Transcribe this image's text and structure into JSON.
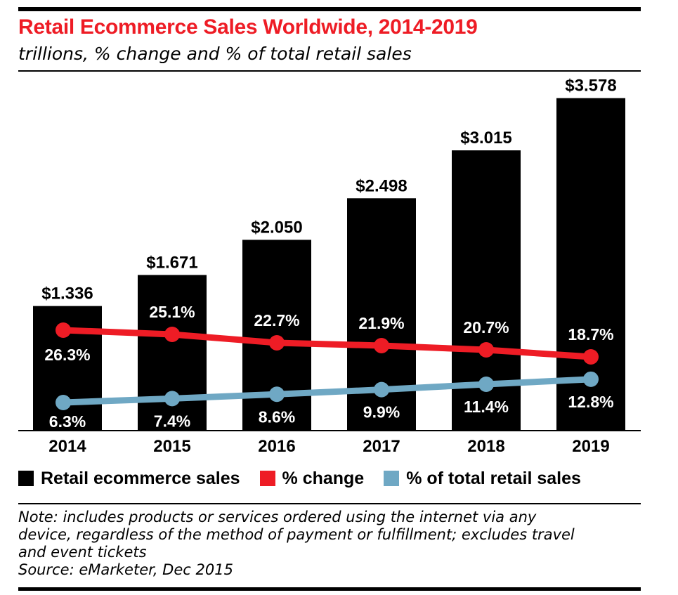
{
  "title": "Retail Ecommerce Sales Worldwide, 2014-2019",
  "subtitle": "trillions, % change and % of total retail sales",
  "colors": {
    "title": "#ee1c25",
    "bars": "#000000",
    "change": "#ee1c25",
    "share": "#6fa8c4"
  },
  "chart_data": {
    "type": "bar",
    "categories": [
      "2014",
      "2015",
      "2016",
      "2017",
      "2018",
      "2019"
    ],
    "series": [
      {
        "name": "Retail ecommerce sales",
        "type": "bar",
        "values": [
          1.336,
          1.671,
          2.05,
          2.498,
          3.015,
          3.578
        ],
        "labels": [
          "$1.336",
          "$1.671",
          "$2.050",
          "$2.498",
          "$3.015",
          "$3.578"
        ]
      },
      {
        "name": "% change",
        "type": "line",
        "values": [
          26.3,
          25.1,
          22.7,
          21.9,
          20.7,
          18.7
        ],
        "labels": [
          "26.3%",
          "25.1%",
          "22.7%",
          "21.9%",
          "20.7%",
          "18.7%"
        ]
      },
      {
        "name": "% of total retail sales",
        "type": "line",
        "values": [
          6.3,
          7.4,
          8.6,
          9.9,
          11.4,
          12.8
        ],
        "labels": [
          "6.3%",
          "7.4%",
          "8.6%",
          "9.9%",
          "11.4%",
          "12.8%"
        ]
      }
    ],
    "grid": false,
    "legend_position": "bottom"
  },
  "legend": [
    {
      "label": "Retail ecommerce sales",
      "color": "#000000"
    },
    {
      "label": "% change",
      "color": "#ee1c25"
    },
    {
      "label": "% of total retail sales",
      "color": "#6fa8c4"
    }
  ],
  "note": {
    "lines": [
      "Note: includes products or services ordered using the internet via any",
      "device, regardless of the method of payment or fulfillment; excludes travel",
      "and event tickets"
    ],
    "source": "Source: eMarketer, Dec 2015"
  }
}
